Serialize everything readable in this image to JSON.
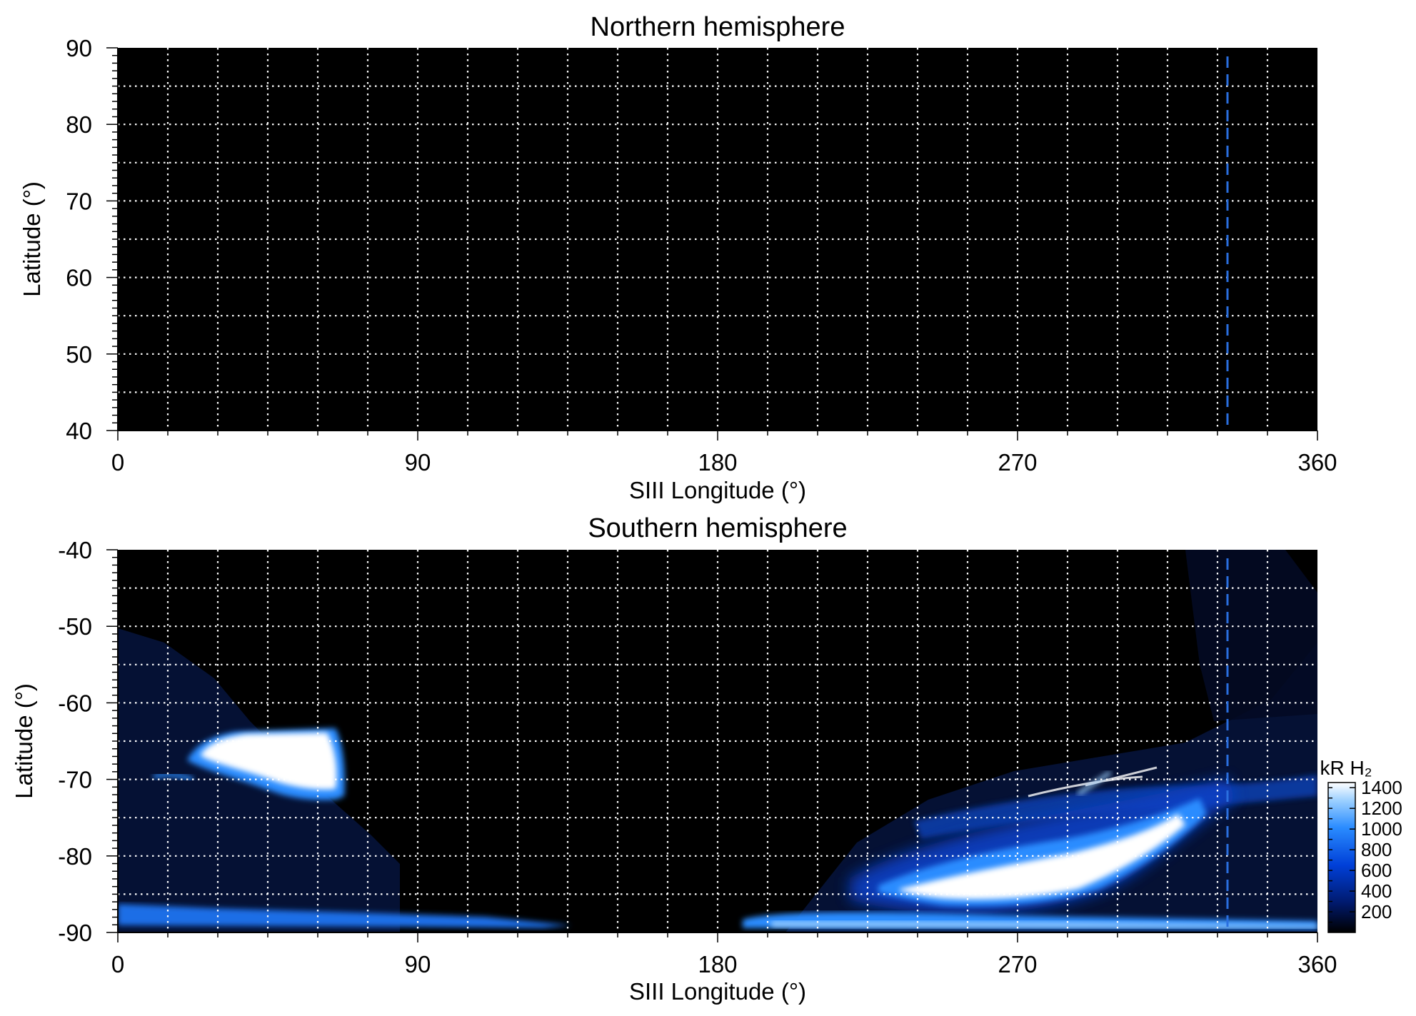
{
  "chart_data": [
    {
      "type": "heatmap",
      "title": "Northern hemisphere",
      "xlabel": "SIII Longitude (°)",
      "ylabel": "Latitude (°)",
      "xlim": [
        0,
        360
      ],
      "ylim": [
        40,
        90
      ],
      "xticks": [
        0,
        90,
        180,
        270,
        360
      ],
      "yticks": [
        40,
        50,
        60,
        70,
        80,
        90
      ],
      "grid": true,
      "grid_spacing_deg": {
        "longitude": 15,
        "latitude": 5
      },
      "background": "#000000",
      "marker_line": {
        "longitude": 333,
        "color": "#2a6fe0",
        "style": "dashed"
      },
      "emission_regions": []
    },
    {
      "type": "heatmap",
      "title": "Southern hemisphere",
      "xlabel": "SIII Longitude (°)",
      "ylabel": "Latitude (°)",
      "xlim": [
        0,
        360
      ],
      "ylim": [
        -90,
        -40
      ],
      "xticks": [
        0,
        90,
        180,
        270,
        360
      ],
      "yticks": [
        -40,
        -50,
        -60,
        -70,
        -80,
        -90
      ],
      "grid": true,
      "grid_spacing_deg": {
        "longitude": 15,
        "latitude": 5
      },
      "background": "#000000",
      "marker_line": {
        "longitude": 333,
        "color": "#2a6fe0",
        "style": "dashed"
      },
      "emission_regions": [
        {
          "shape": "blob",
          "lon_range": [
            25,
            68
          ],
          "lat_range": [
            -73,
            -64
          ],
          "peak_kR": 1400
        },
        {
          "shape": "arc",
          "lon_range": [
            190,
            330
          ],
          "lat_range": [
            -89,
            -72
          ],
          "peak_kR": 1400
        },
        {
          "shape": "band",
          "lon_range": [
            0,
            140
          ],
          "lat_range": [
            -90,
            -86
          ],
          "peak_kR": 700
        },
        {
          "shape": "band",
          "lon_range": [
            185,
            360
          ],
          "lat_range": [
            -90,
            -86
          ],
          "peak_kR": 900
        }
      ],
      "colorbar": {
        "label": "kR H₂",
        "ticks": [
          200,
          400,
          600,
          800,
          1000,
          1200,
          1400
        ],
        "range": [
          0,
          1450
        ],
        "colors": [
          "#000000",
          "#001a6e",
          "#0040d8",
          "#2a8cff",
          "#9cd0ff",
          "#ffffff"
        ]
      }
    }
  ]
}
